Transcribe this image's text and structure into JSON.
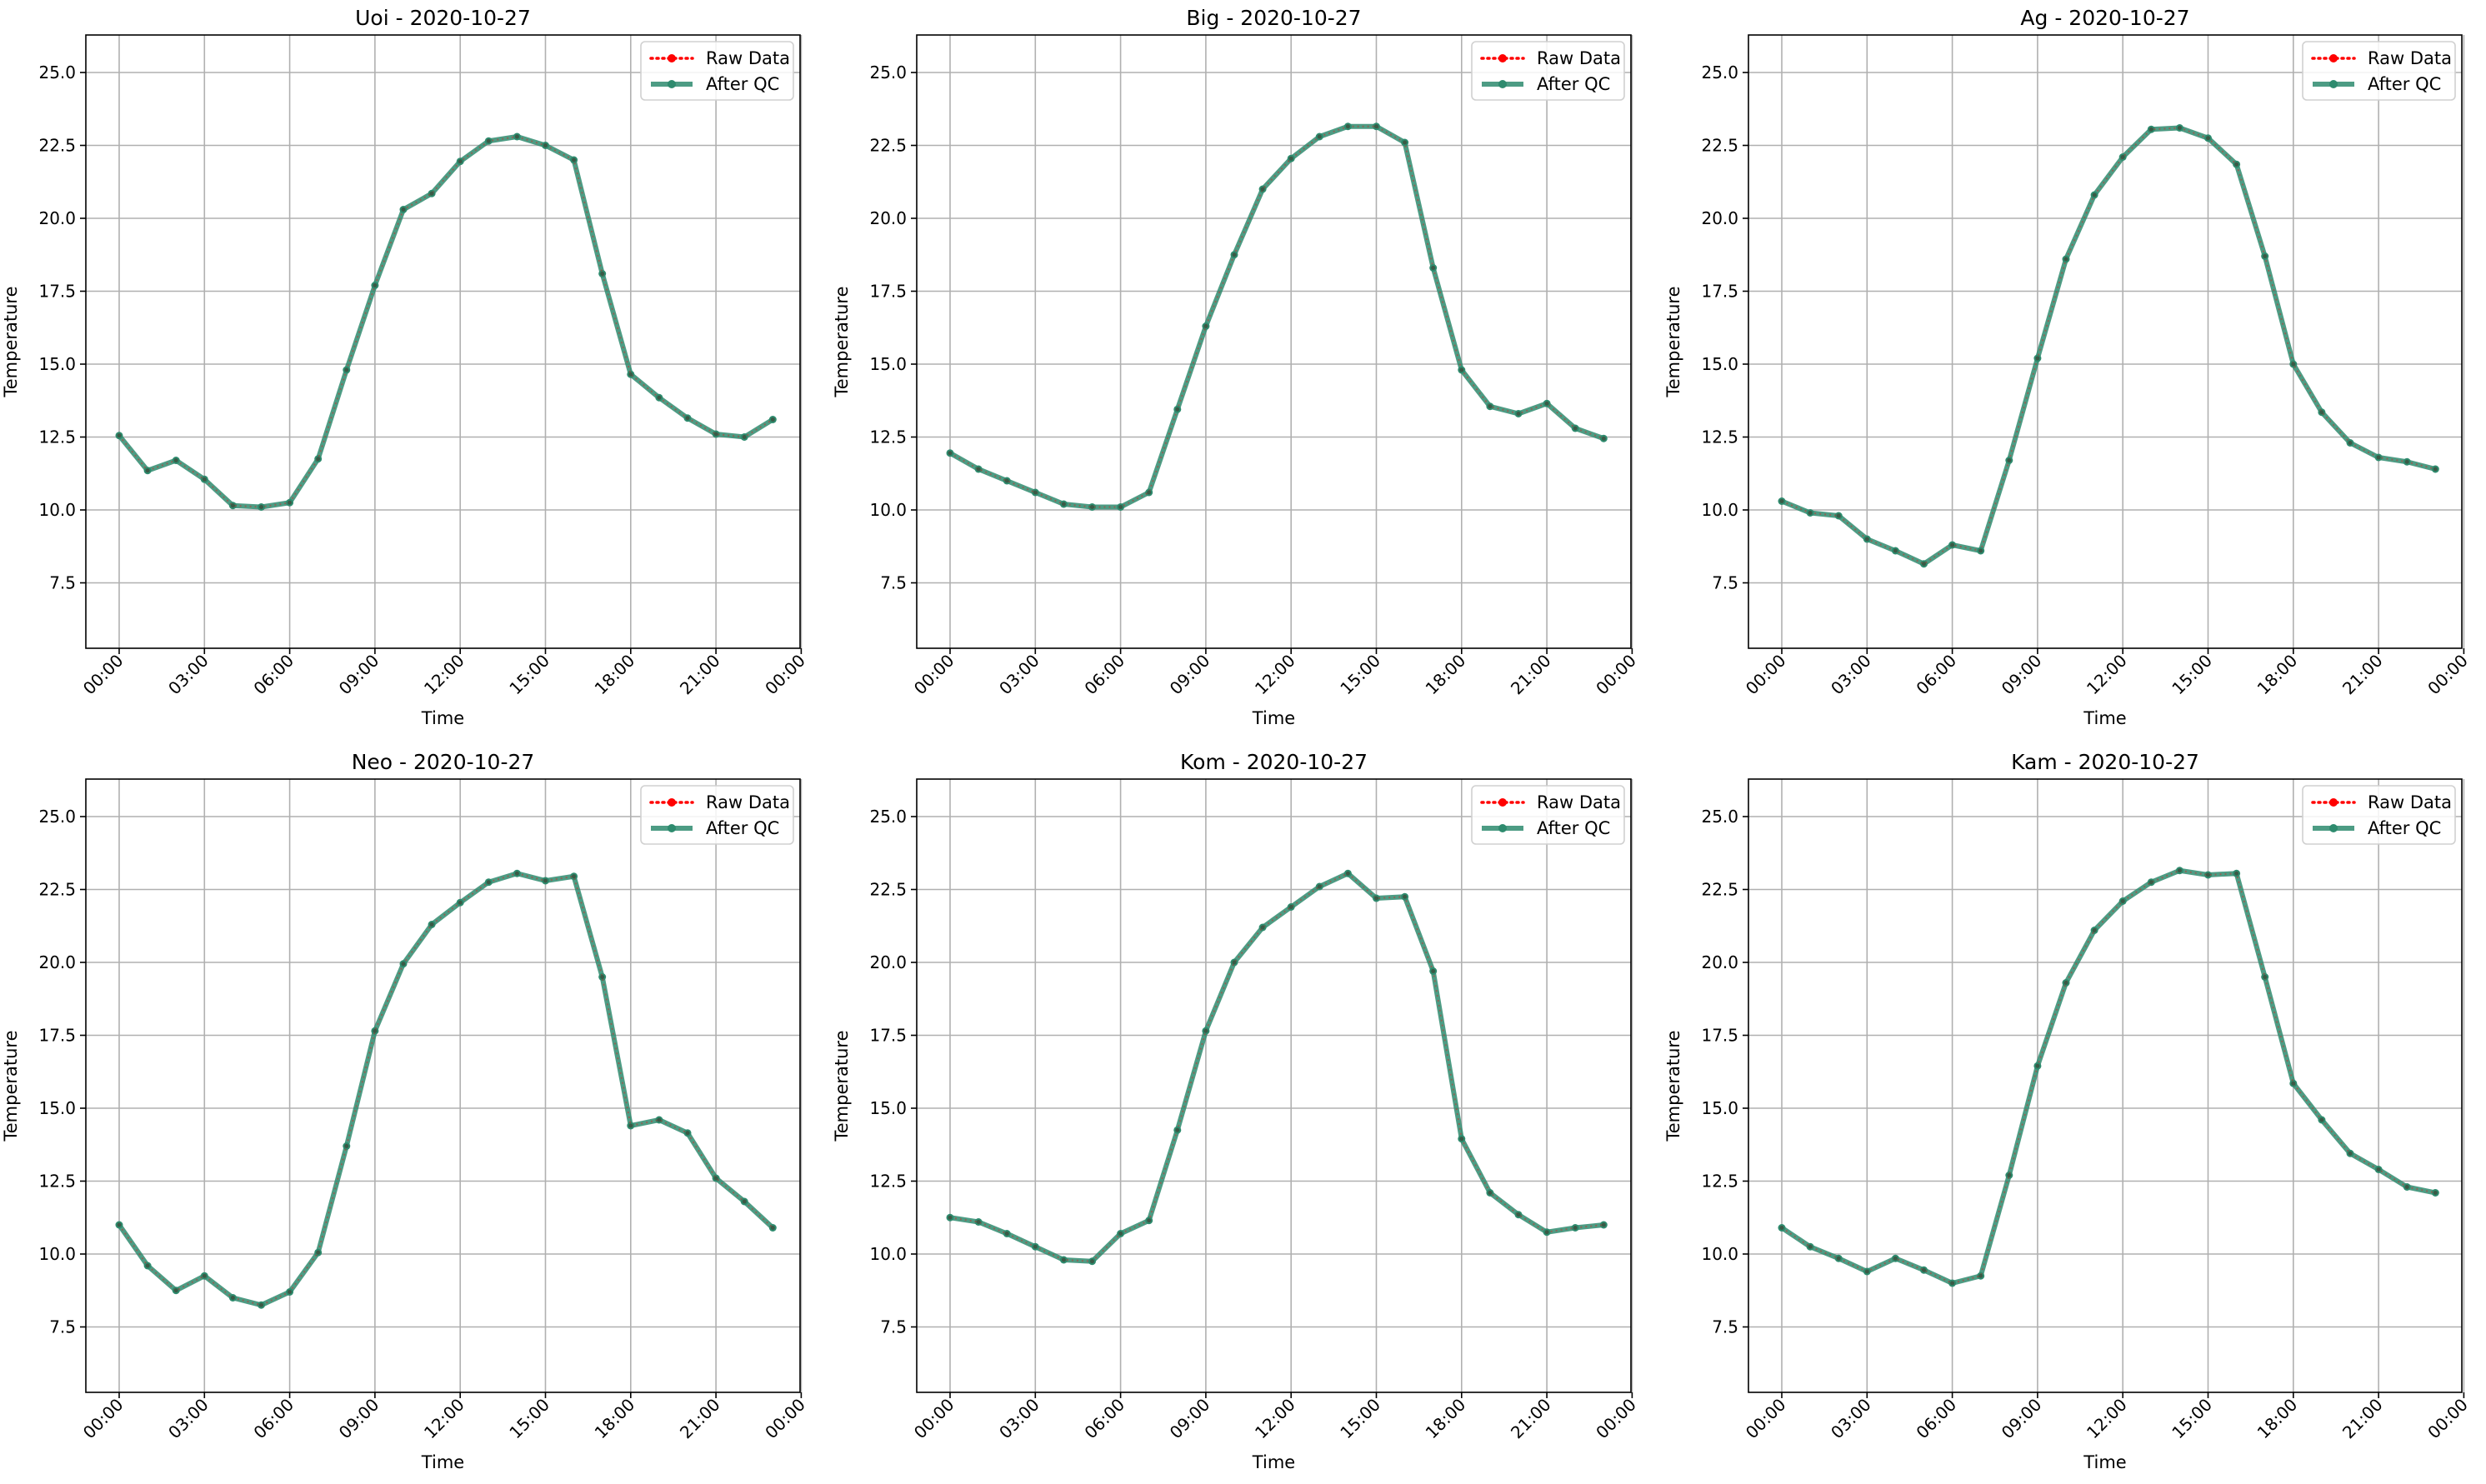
{
  "figure": {
    "x_tick_labels": [
      "00:00",
      "03:00",
      "06:00",
      "09:00",
      "12:00",
      "15:00",
      "18:00",
      "21:00",
      "00:00"
    ],
    "y_tick_labels": [
      "7.5",
      "10.0",
      "12.5",
      "15.0",
      "17.5",
      "20.0",
      "22.5",
      "25.0"
    ]
  },
  "colors": {
    "raw": "#ff0000",
    "qc": "#2e8b6e",
    "grid": "#b0b0b0",
    "axes": "#000000"
  },
  "chart_data": [
    {
      "type": "line",
      "title": "Uoi - 2020-10-27",
      "xlabel": "Time",
      "ylabel": "Temperature",
      "x": [
        "00:00",
        "01:00",
        "02:00",
        "03:00",
        "04:00",
        "05:00",
        "06:00",
        "07:00",
        "08:00",
        "09:00",
        "10:00",
        "11:00",
        "12:00",
        "13:00",
        "14:00",
        "15:00",
        "16:00",
        "17:00",
        "18:00",
        "19:00",
        "20:00",
        "21:00",
        "22:00",
        "23:00"
      ],
      "ylim": [
        4.5,
        26.2
      ],
      "xlim": [
        "2020-10-27 23:00 (prev)",
        "2020-10-28 00:30"
      ],
      "grid": true,
      "legend": "top-right",
      "series": [
        {
          "name": "Raw Data",
          "style": "dotted with markers",
          "values": [
            12.55,
            11.35,
            11.7,
            11.05,
            10.15,
            10.1,
            10.25,
            11.75,
            14.8,
            17.7,
            20.3,
            20.85,
            21.95,
            22.65,
            22.8,
            22.5,
            22.0,
            18.1,
            14.65,
            13.85,
            13.15,
            12.6,
            12.5,
            13.1
          ]
        },
        {
          "name": "After QC",
          "style": "solid with markers",
          "values": [
            12.55,
            11.35,
            11.7,
            11.05,
            10.15,
            10.1,
            10.25,
            11.75,
            14.8,
            17.7,
            20.3,
            20.85,
            21.95,
            22.65,
            22.8,
            22.5,
            22.0,
            18.1,
            14.65,
            13.85,
            13.15,
            12.6,
            12.5,
            13.1
          ]
        }
      ]
    },
    {
      "type": "line",
      "title": "Big - 2020-10-27",
      "xlabel": "Time",
      "ylabel": "Temperature",
      "x": [
        "00:00",
        "01:00",
        "02:00",
        "03:00",
        "04:00",
        "05:00",
        "06:00",
        "07:00",
        "08:00",
        "09:00",
        "10:00",
        "11:00",
        "12:00",
        "13:00",
        "14:00",
        "15:00",
        "16:00",
        "17:00",
        "18:00",
        "19:00",
        "20:00",
        "21:00",
        "22:00",
        "23:00"
      ],
      "ylim": [
        4.5,
        26.2
      ],
      "grid": true,
      "legend": "top-right",
      "series": [
        {
          "name": "Raw Data",
          "style": "dotted with markers",
          "values": [
            11.95,
            11.4,
            11.0,
            10.6,
            10.2,
            10.1,
            10.1,
            10.6,
            13.45,
            16.3,
            18.75,
            21.0,
            22.05,
            22.8,
            23.15,
            23.15,
            22.6,
            18.3,
            14.8,
            13.55,
            13.3,
            13.65,
            12.8,
            12.45
          ]
        },
        {
          "name": "After QC",
          "style": "solid with markers",
          "values": [
            11.95,
            11.4,
            11.0,
            10.6,
            10.2,
            10.1,
            10.1,
            10.6,
            13.45,
            16.3,
            18.75,
            21.0,
            22.05,
            22.8,
            23.15,
            23.15,
            22.6,
            18.3,
            14.8,
            13.55,
            13.3,
            13.65,
            12.8,
            12.45
          ]
        }
      ]
    },
    {
      "type": "line",
      "title": "Ag - 2020-10-27",
      "xlabel": "Time",
      "ylabel": "Temperature",
      "x": [
        "00:00",
        "01:00",
        "02:00",
        "03:00",
        "04:00",
        "05:00",
        "06:00",
        "07:00",
        "08:00",
        "09:00",
        "10:00",
        "11:00",
        "12:00",
        "13:00",
        "14:00",
        "15:00",
        "16:00",
        "17:00",
        "18:00",
        "19:00",
        "20:00",
        "21:00",
        "22:00",
        "23:00"
      ],
      "ylim": [
        4.5,
        26.2
      ],
      "grid": true,
      "legend": "top-right",
      "series": [
        {
          "name": "Raw Data",
          "style": "dotted with markers",
          "values": [
            10.3,
            9.9,
            9.8,
            9.0,
            8.6,
            8.15,
            8.8,
            8.6,
            11.7,
            15.2,
            18.6,
            20.8,
            22.1,
            23.05,
            23.1,
            22.75,
            21.85,
            18.7,
            15.0,
            13.35,
            12.3,
            11.8,
            11.65,
            11.4
          ]
        },
        {
          "name": "After QC",
          "style": "solid with markers",
          "values": [
            10.3,
            9.9,
            9.8,
            9.0,
            8.6,
            8.15,
            8.8,
            8.6,
            11.7,
            15.2,
            18.6,
            20.8,
            22.1,
            23.05,
            23.1,
            22.75,
            21.85,
            18.7,
            15.0,
            13.35,
            12.3,
            11.8,
            11.65,
            11.4
          ]
        }
      ]
    },
    {
      "type": "line",
      "title": "Neo - 2020-10-27",
      "xlabel": "Time",
      "ylabel": "Temperature",
      "x": [
        "00:00",
        "01:00",
        "02:00",
        "03:00",
        "04:00",
        "05:00",
        "06:00",
        "07:00",
        "08:00",
        "09:00",
        "10:00",
        "11:00",
        "12:00",
        "13:00",
        "14:00",
        "15:00",
        "16:00",
        "17:00",
        "18:00",
        "19:00",
        "20:00",
        "21:00",
        "22:00",
        "23:00"
      ],
      "ylim": [
        4.5,
        26.2
      ],
      "grid": true,
      "legend": "top-right",
      "series": [
        {
          "name": "Raw Data",
          "style": "dotted with markers",
          "values": [
            11.0,
            9.6,
            8.75,
            9.25,
            8.5,
            8.25,
            8.7,
            10.05,
            13.7,
            17.65,
            19.95,
            21.3,
            22.05,
            22.75,
            23.05,
            22.8,
            22.95,
            19.5,
            14.4,
            14.6,
            14.15,
            12.6,
            11.8,
            10.9
          ]
        },
        {
          "name": "After QC",
          "style": "solid with markers",
          "values": [
            11.0,
            9.6,
            8.75,
            9.25,
            8.5,
            8.25,
            8.7,
            10.05,
            13.7,
            17.65,
            19.95,
            21.3,
            22.05,
            22.75,
            23.05,
            22.8,
            22.95,
            19.5,
            14.4,
            14.6,
            14.15,
            12.6,
            11.8,
            10.9
          ]
        }
      ]
    },
    {
      "type": "line",
      "title": "Kom - 2020-10-27",
      "xlabel": "Time",
      "ylabel": "Temperature",
      "x": [
        "00:00",
        "01:00",
        "02:00",
        "03:00",
        "04:00",
        "05:00",
        "06:00",
        "07:00",
        "08:00",
        "09:00",
        "10:00",
        "11:00",
        "12:00",
        "13:00",
        "14:00",
        "15:00",
        "16:00",
        "17:00",
        "18:00",
        "19:00",
        "20:00",
        "21:00",
        "22:00",
        "23:00"
      ],
      "ylim": [
        4.5,
        26.2
      ],
      "grid": true,
      "legend": "top-right",
      "series": [
        {
          "name": "Raw Data",
          "style": "dotted with markers",
          "values": [
            11.25,
            11.1,
            10.7,
            10.25,
            9.8,
            9.75,
            10.7,
            11.15,
            14.25,
            17.65,
            20.0,
            21.2,
            21.9,
            22.6,
            23.05,
            22.2,
            22.25,
            19.7,
            13.95,
            12.1,
            11.35,
            10.75,
            10.9,
            11.0
          ]
        },
        {
          "name": "After QC",
          "style": "solid with markers",
          "values": [
            11.25,
            11.1,
            10.7,
            10.25,
            9.8,
            9.75,
            10.7,
            11.15,
            14.25,
            17.65,
            20.0,
            21.2,
            21.9,
            22.6,
            23.05,
            22.2,
            22.25,
            19.7,
            13.95,
            12.1,
            11.35,
            10.75,
            10.9,
            11.0
          ]
        }
      ]
    },
    {
      "type": "line",
      "title": "Kam - 2020-10-27",
      "xlabel": "Time",
      "ylabel": "Temperature",
      "x": [
        "00:00",
        "01:00",
        "02:00",
        "03:00",
        "04:00",
        "05:00",
        "06:00",
        "07:00",
        "08:00",
        "09:00",
        "10:00",
        "11:00",
        "12:00",
        "13:00",
        "14:00",
        "15:00",
        "16:00",
        "17:00",
        "18:00",
        "19:00",
        "20:00",
        "21:00",
        "22:00",
        "23:00"
      ],
      "ylim": [
        4.5,
        26.2
      ],
      "grid": true,
      "legend": "top-right",
      "series": [
        {
          "name": "Raw Data",
          "style": "dotted with markers",
          "values": [
            10.9,
            10.25,
            9.85,
            9.4,
            9.85,
            9.45,
            9.0,
            9.25,
            12.7,
            16.45,
            19.3,
            21.1,
            22.1,
            22.75,
            23.15,
            23.0,
            23.05,
            19.5,
            15.85,
            14.6,
            13.45,
            12.9,
            12.3,
            12.1
          ]
        },
        {
          "name": "After QC",
          "style": "solid with markers",
          "values": [
            10.9,
            10.25,
            9.85,
            9.4,
            9.85,
            9.45,
            9.0,
            9.25,
            12.7,
            16.45,
            19.3,
            21.1,
            22.1,
            22.75,
            23.15,
            23.0,
            23.05,
            19.5,
            15.85,
            14.6,
            13.45,
            12.9,
            12.3,
            12.1
          ]
        }
      ]
    }
  ]
}
